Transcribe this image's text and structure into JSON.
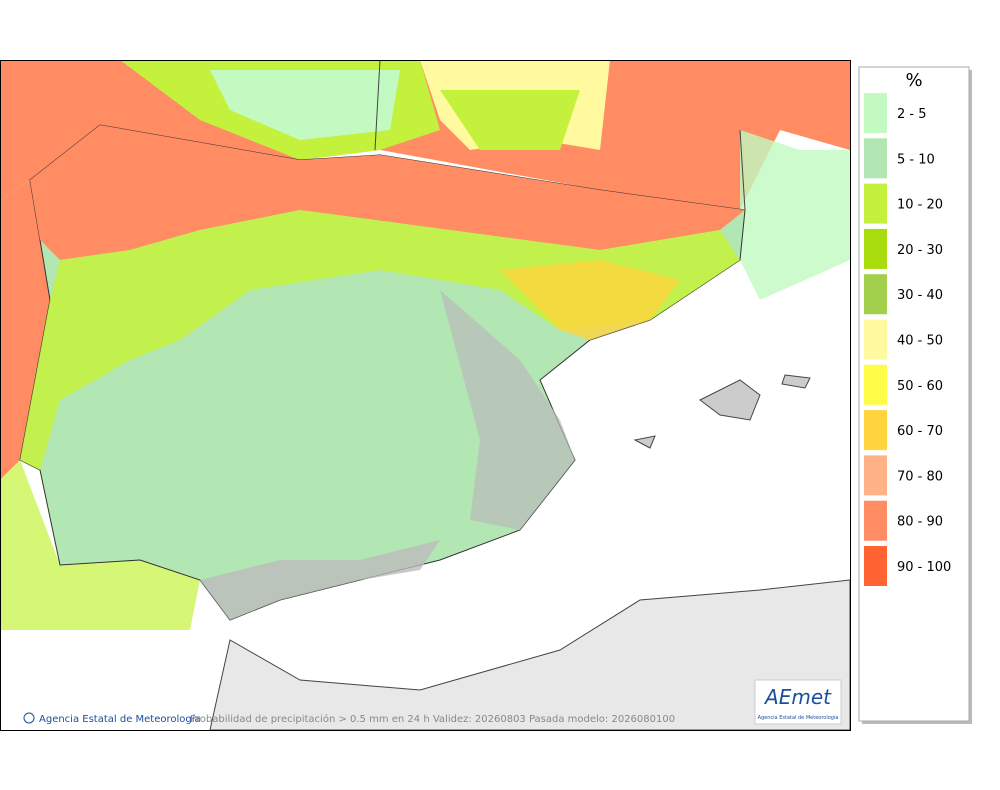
{
  "legend": {
    "title": "%",
    "items": [
      {
        "label": "2 - 5",
        "color": "#c2fac2"
      },
      {
        "label": "5 - 10",
        "color": "#b2e6b2"
      },
      {
        "label": "10 - 20",
        "color": "#c4f23c"
      },
      {
        "label": "20 - 30",
        "color": "#a8dc0c"
      },
      {
        "label": "30 - 40",
        "color": "#a2cf4c"
      },
      {
        "label": "40 - 50",
        "color": "#fffaa0"
      },
      {
        "label": "50 - 60",
        "color": "#fffc48"
      },
      {
        "label": "60 - 70",
        "color": "#ffd43c"
      },
      {
        "label": "70 - 80",
        "color": "#ffb286"
      },
      {
        "label": "80 - 90",
        "color": "#ff8c62"
      },
      {
        "label": "90 - 100",
        "color": "#ff6432"
      }
    ]
  },
  "footer": {
    "credit": "Agencia Estatal de Meteorología",
    "caption": "Probabilidad de precipitación > 0.5 mm en 24 h Validez: 20260803 Pasada modelo: 2026080100"
  },
  "logo": {
    "name": "AEmet",
    "subtitle": "Agencia Estatal de Meteorología"
  }
}
